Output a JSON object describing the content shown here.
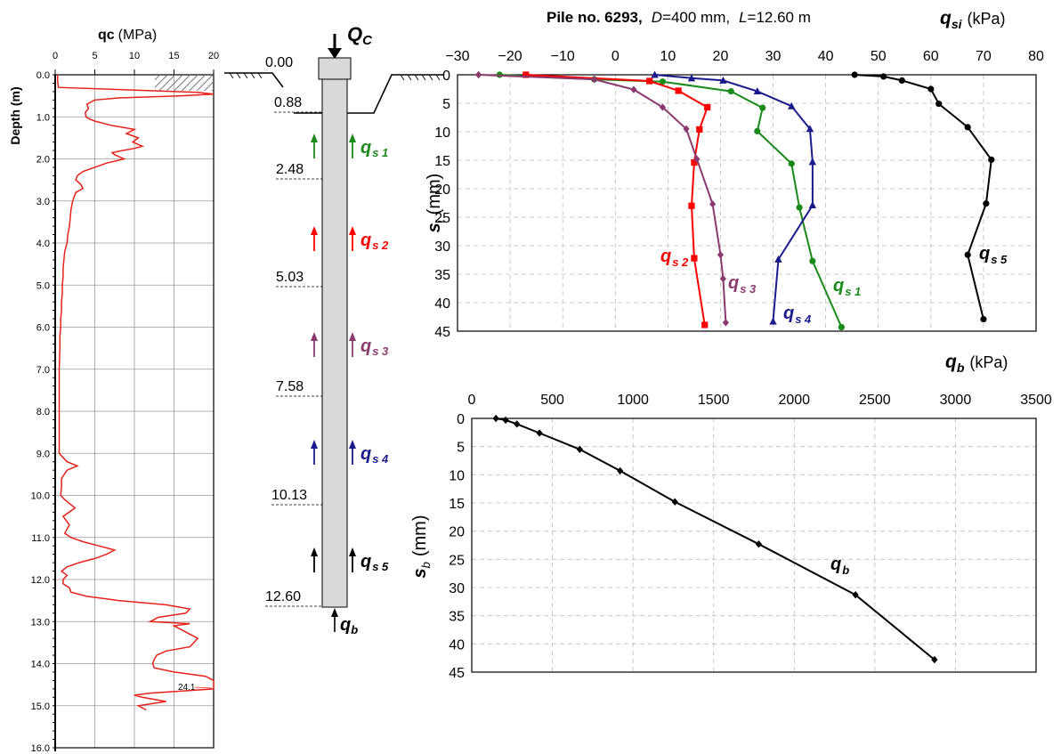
{
  "chart_data": [
    {
      "id": "cpt",
      "type": "line",
      "title": "",
      "xlabel": "qc",
      "xlabel_unit": "(MPa)",
      "ylabel": "Depth (m)",
      "xlim": [
        0,
        20
      ],
      "ylim": [
        0,
        16
      ],
      "y_inverted": true,
      "x_ticks": [
        0,
        5,
        10,
        15,
        20
      ],
      "y_ticks": [
        "0.0",
        "1.0",
        "2.0",
        "3.0",
        "4.0",
        "5.0",
        "6.0",
        "7.0",
        "8.0",
        "9.0",
        "10.0",
        "11.0",
        "12.0",
        "13.0",
        "14.0",
        "15.0",
        "16.0"
      ],
      "x_axis_position": "top",
      "grid": true,
      "max_annotation": "24.1",
      "series": [
        {
          "color": "#e8211b",
          "depth": [
            0.0,
            0.15,
            0.3,
            0.42,
            0.46,
            0.5,
            0.55,
            0.6,
            0.7,
            0.8,
            0.9,
            1.0,
            1.05,
            1.1,
            1.2,
            1.3,
            1.4,
            1.5,
            1.6,
            1.7,
            1.75,
            1.8,
            1.85,
            1.9,
            2.0,
            2.1,
            2.2,
            2.3,
            2.4,
            2.5,
            2.6,
            2.7,
            2.8,
            3.0,
            3.2,
            3.4,
            3.6,
            3.8,
            4.0,
            4.2,
            4.4,
            4.6,
            4.8,
            5.0,
            5.2,
            5.4,
            5.6,
            5.8,
            6.0,
            6.2,
            6.5,
            7.0,
            7.5,
            8.0,
            8.5,
            9.0,
            9.2,
            9.3,
            9.4,
            9.6,
            9.8,
            10.0,
            10.1,
            10.3,
            10.5,
            10.7,
            10.9,
            11.0,
            11.1,
            11.2,
            11.3,
            11.4,
            11.5,
            11.6,
            11.7,
            11.8,
            11.9,
            12.0,
            12.1,
            12.2,
            12.3,
            12.4,
            12.5,
            12.6,
            12.7,
            12.8,
            12.9,
            13.0,
            13.05,
            13.1,
            13.2,
            13.3,
            13.4,
            13.5,
            13.6,
            13.7,
            13.8,
            13.9,
            14.0,
            14.1,
            14.2,
            14.3,
            14.4,
            14.5,
            14.6,
            14.7,
            14.75,
            14.8,
            14.9,
            15.0,
            15.1
          ],
          "qc": [
            0.3,
            0.3,
            0.4,
            18,
            20,
            16,
            8,
            5,
            4,
            4.2,
            3.8,
            3.9,
            4.3,
            5,
            7,
            10,
            9,
            10.5,
            9.8,
            11,
            10,
            8.5,
            7.2,
            7.5,
            8.7,
            6.5,
            5,
            3.5,
            2.8,
            2.6,
            3.2,
            3.5,
            2.6,
            2.2,
            2,
            1.9,
            1.8,
            1.6,
            1.5,
            1.2,
            1.1,
            1.0,
            1.0,
            0.9,
            0.9,
            0.8,
            0.8,
            0.7,
            0.7,
            0.6,
            0.6,
            0.5,
            0.5,
            0.5,
            0.5,
            0.5,
            1.5,
            2.8,
            1.5,
            0.8,
            0.8,
            0.7,
            1.2,
            2.5,
            1.0,
            1.8,
            1.2,
            2.0,
            3.5,
            5.5,
            7.5,
            6.5,
            5,
            3,
            1.5,
            0.8,
            1.5,
            1,
            1,
            1.8,
            2,
            4,
            8,
            14,
            17,
            16.5,
            13,
            12,
            17,
            15,
            16,
            17,
            18,
            17.5,
            17,
            14,
            12.8,
            12.5,
            12.3,
            12.5,
            15,
            19,
            20,
            20,
            20,
            12,
            10,
            11,
            14,
            10.5,
            11.5
          ]
        }
      ]
    },
    {
      "id": "qsi",
      "type": "line",
      "title": "Pile no. 6293,",
      "title_d_label": "D",
      "title_d_value": "=400 mm,",
      "title_l_label": "L",
      "title_l_value": "=12.60 m",
      "xlabel_symbol": "q",
      "xlabel_subscript": "si",
      "xlabel_unit": "(kPa)",
      "ylabel_symbol": "s",
      "ylabel_subscript": "i",
      "ylabel_unit": "(mm)",
      "xlim": [
        -30,
        80
      ],
      "ylim": [
        0,
        45
      ],
      "y_inverted": true,
      "x_axis_position": "top",
      "x_ticks": [
        "−30",
        "−20",
        "−10",
        "0",
        "10",
        "20",
        "30",
        "40",
        "50",
        "60",
        "70",
        "80"
      ],
      "y_ticks": [
        "0",
        "5",
        "10",
        "15",
        "20",
        "25",
        "30",
        "35",
        "40",
        "45"
      ],
      "grid": true,
      "series": [
        {
          "label_symbol": "q",
          "label_sub": "s 1",
          "color": "#1a8a1a",
          "marker": "circle",
          "x": [
            -22,
            -4,
            9,
            22,
            28,
            27,
            33.5,
            35,
            37.5,
            43
          ],
          "y": [
            0,
            0.8,
            1.2,
            2.9,
            5.8,
            9.9,
            15.6,
            23.3,
            32.7,
            44.3
          ]
        },
        {
          "label_symbol": "q",
          "label_sub": "s 2",
          "color": "#ff0000",
          "marker": "square",
          "x": [
            -17,
            6.5,
            12,
            17.5,
            16,
            15,
            14.5,
            15,
            17
          ],
          "y": [
            0,
            1.1,
            2.8,
            5.7,
            9.6,
            15.4,
            23.0,
            32.2,
            43.9
          ]
        },
        {
          "label_symbol": "q",
          "label_sub": "s 3",
          "color": "#8b3a6e",
          "marker": "diamond",
          "x": [
            -26,
            -4,
            3.5,
            9,
            13.5,
            15.5,
            18.5,
            20,
            20.5,
            21
          ],
          "y": [
            0,
            0.8,
            2.6,
            5.7,
            9.5,
            14.8,
            22.7,
            31.6,
            35.8,
            43.5
          ]
        },
        {
          "label_symbol": "q",
          "label_sub": "s 4",
          "color": "#1a1a8c",
          "marker": "triangle",
          "x": [
            7.5,
            14.5,
            20.5,
            27,
            33.5,
            37,
            37.5,
            37.5,
            31,
            30
          ],
          "y": [
            0,
            0.6,
            1.0,
            2.9,
            5.5,
            9.5,
            15.3,
            22.9,
            32.4,
            43.3
          ]
        },
        {
          "label_symbol": "q",
          "label_sub": "s 5",
          "color": "#000000",
          "marker": "circle",
          "x": [
            45.5,
            51,
            54.5,
            60,
            61.5,
            67,
            71.5,
            70.5,
            67,
            70
          ],
          "y": [
            0,
            0.3,
            1.0,
            2.5,
            5.1,
            9.2,
            14.9,
            22.6,
            31.6,
            42.9
          ]
        }
      ]
    },
    {
      "id": "qb",
      "type": "line",
      "title": "",
      "xlabel_symbol": "q",
      "xlabel_subscript": "b",
      "xlabel_unit": "(kPa)",
      "ylabel_symbol": "s",
      "ylabel_subscript": "b",
      "ylabel_unit": "(mm)",
      "xlim": [
        0,
        3500
      ],
      "ylim": [
        0,
        45
      ],
      "y_inverted": true,
      "x_axis_position": "top",
      "x_ticks": [
        "0",
        "500",
        "1000",
        "1500",
        "2000",
        "2500",
        "3000",
        "3500"
      ],
      "y_ticks": [
        "0",
        "5",
        "10",
        "15",
        "20",
        "25",
        "30",
        "35",
        "40",
        "45"
      ],
      "grid": true,
      "series": [
        {
          "label_symbol": "q",
          "label_sub": "b",
          "color": "#000000",
          "marker": "diamond",
          "x": [
            150,
            210,
            280,
            420,
            670,
            920,
            1260,
            1780,
            2380,
            2870
          ],
          "y": [
            0,
            0.3,
            1.0,
            2.6,
            5.5,
            9.3,
            14.8,
            22.3,
            31.3,
            42.8
          ]
        }
      ]
    }
  ],
  "pile": {
    "load_symbol": "Q",
    "load_subscript": "C",
    "top_level": "0.00",
    "levels": [
      "0.88",
      "2.48",
      "5.03",
      "7.58",
      "10.13",
      "12.60"
    ],
    "segments": [
      {
        "symbol": "q",
        "sub": "s 1",
        "color": "#1a8a1a"
      },
      {
        "symbol": "q",
        "sub": "s 2",
        "color": "#ff0000"
      },
      {
        "symbol": "q",
        "sub": "s 3",
        "color": "#8b3a6e"
      },
      {
        "symbol": "q",
        "sub": "s 4",
        "color": "#1a1a8c"
      },
      {
        "symbol": "q",
        "sub": "s 5",
        "color": "#000000"
      }
    ],
    "base": {
      "symbol": "q",
      "sub": "b",
      "color": "#000000"
    }
  }
}
